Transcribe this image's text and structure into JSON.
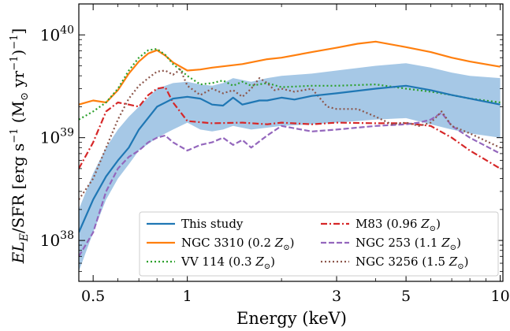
{
  "chart_data": {
    "type": "line",
    "xlabel": "Energy (keV)",
    "ylabel_parts": {
      "main": "EL",
      "sub": "E",
      "rest": "/SFR [erg s",
      "exp1": "−1",
      "mid": " (M",
      "sun": "⊙",
      "mid2": " yr",
      "exp2": "−1",
      "end": ")",
      "exp3": "−1",
      "close": "]"
    },
    "xscale": "log",
    "yscale": "log",
    "xlim": [
      0.45,
      10.2
    ],
    "ylim": [
      4e+37,
      2e+40
    ],
    "xticks": [
      {
        "value": 0.5,
        "label": "0.5"
      },
      {
        "value": 1,
        "label": "1"
      },
      {
        "value": 3,
        "label": "3"
      },
      {
        "value": 5,
        "label": "5"
      },
      {
        "value": 10,
        "label": "10"
      }
    ],
    "yticks": [
      {
        "value": 1e+38,
        "base": "10",
        "exp": "38"
      },
      {
        "value": 1e+39,
        "base": "10",
        "exp": "39"
      },
      {
        "value": 1e+40,
        "base": "10",
        "exp": "40"
      }
    ],
    "band": {
      "color": "#a6c8e6",
      "x": [
        0.45,
        0.5,
        0.55,
        0.6,
        0.65,
        0.7,
        0.8,
        0.9,
        1.0,
        1.1,
        1.2,
        1.3,
        1.4,
        1.6,
        1.8,
        2.0,
        2.5,
        3.0,
        4.0,
        5.0,
        6.0,
        7.0,
        8.0,
        10.0
      ],
      "upper": [
        2e+38,
        4.5e+38,
        8e+38,
        1.2e+39,
        1.6e+39,
        2e+39,
        3e+39,
        3.4e+39,
        3.5e+39,
        3.3e+39,
        3.2e+39,
        3.4e+39,
        3.8e+39,
        3.5e+39,
        3.8e+39,
        4e+39,
        4.2e+39,
        4.5e+39,
        5e+39,
        5.3e+39,
        4.8e+39,
        4.3e+39,
        4e+39,
        3.8e+39
      ],
      "lower": [
        5e+37,
        1.2e+38,
        2.5e+38,
        4e+38,
        5.5e+38,
        7.5e+38,
        1e+39,
        1.2e+39,
        1.4e+39,
        1.2e+39,
        1.15e+39,
        1.2e+39,
        1.3e+39,
        1.2e+39,
        1.25e+39,
        1.3e+39,
        1.35e+39,
        1.4e+39,
        1.5e+39,
        1.55e+39,
        1.35e+39,
        1.2e+39,
        1.1e+39,
        1e+39
      ]
    },
    "series": [
      {
        "name": "This study",
        "color": "#1f77b4",
        "dash": "solid",
        "x": [
          0.45,
          0.5,
          0.55,
          0.6,
          0.65,
          0.7,
          0.8,
          0.9,
          1.0,
          1.1,
          1.2,
          1.3,
          1.4,
          1.5,
          1.6,
          1.7,
          1.8,
          2.0,
          2.2,
          2.5,
          3.0,
          4.0,
          5.0,
          6.0,
          7.0,
          8.0,
          10.0
        ],
        "y": [
          1.2e+38,
          2.5e+38,
          4.2e+38,
          6e+38,
          8e+38,
          1.2e+39,
          2e+39,
          2.4e+39,
          2.5e+39,
          2.4e+39,
          2.1e+39,
          2.05e+39,
          2.45e+39,
          2.1e+39,
          2.2e+39,
          2.3e+39,
          2.3e+39,
          2.45e+39,
          2.35e+39,
          2.55e+39,
          2.7e+39,
          3e+39,
          3.2e+39,
          2.9e+39,
          2.6e+39,
          2.4e+39,
          2.1e+39
        ]
      },
      {
        "name": "NGC 3310",
        "metal": "0.2",
        "color": "#ff7f0e",
        "dash": "solid",
        "x": [
          0.45,
          0.5,
          0.55,
          0.6,
          0.65,
          0.7,
          0.75,
          0.8,
          0.85,
          0.9,
          1.0,
          1.1,
          1.2,
          1.5,
          1.8,
          2.0,
          2.5,
          3.0,
          3.5,
          4.0,
          5.0,
          6.0,
          7.0,
          8.0,
          10.0
        ],
        "y": [
          2.1e+39,
          2.3e+39,
          2.2e+39,
          2.9e+39,
          4.2e+39,
          5.5e+39,
          6.6e+39,
          7.1e+39,
          6.3e+39,
          5.4e+39,
          4.5e+39,
          4.6e+39,
          4.8e+39,
          5.2e+39,
          5.8e+39,
          6e+39,
          6.8e+39,
          7.5e+39,
          8.2e+39,
          8.6e+39,
          7.6e+39,
          6.8e+39,
          6e+39,
          5.5e+39,
          4.9e+39
        ]
      },
      {
        "name": "VV 114",
        "metal": "0.3",
        "color": "#2ca02c",
        "dash": "2,3",
        "x": [
          0.45,
          0.5,
          0.55,
          0.6,
          0.65,
          0.7,
          0.75,
          0.8,
          0.85,
          0.9,
          1.0,
          1.1,
          1.2,
          1.3,
          1.4,
          1.5,
          1.6,
          1.8,
          2.0,
          2.5,
          3.0,
          4.0,
          5.0,
          6.0,
          7.0,
          8.0,
          10.0
        ],
        "y": [
          1.5e+39,
          1.8e+39,
          2.2e+39,
          3e+39,
          4.5e+39,
          6e+39,
          7.1e+39,
          7.3e+39,
          6.4e+39,
          5.2e+39,
          4e+39,
          3.3e+39,
          3.4e+39,
          3.6e+39,
          3.2e+39,
          3.5e+39,
          3.2e+39,
          3.4e+39,
          3.1e+39,
          3.2e+39,
          3.2e+39,
          3.3e+39,
          3e+39,
          2.8e+39,
          2.6e+39,
          2.4e+39,
          2.2e+39
        ]
      },
      {
        "name": "M83",
        "metal": "0.96",
        "color": "#d62728",
        "dash": "8,3,2,3",
        "x": [
          0.45,
          0.5,
          0.55,
          0.6,
          0.65,
          0.7,
          0.75,
          0.8,
          0.85,
          0.9,
          1.0,
          1.2,
          1.5,
          1.8,
          2.0,
          2.5,
          3.0,
          4.0,
          5.0,
          6.0,
          7.0,
          8.0,
          10.0
        ],
        "y": [
          5e+38,
          9e+38,
          1.8e+39,
          2.2e+39,
          2.1e+39,
          2e+39,
          2.6e+39,
          3e+39,
          3.1e+39,
          2.2e+39,
          1.45e+39,
          1.38e+39,
          1.4e+39,
          1.35e+39,
          1.4e+39,
          1.35e+39,
          1.4e+39,
          1.38e+39,
          1.38e+39,
          1.3e+39,
          1e+39,
          7.5e+38,
          5e+38
        ]
      },
      {
        "name": "NGC 253",
        "metal": "1.1",
        "color": "#9467bd",
        "dash": "7,3",
        "x": [
          0.45,
          0.5,
          0.55,
          0.6,
          0.65,
          0.7,
          0.75,
          0.8,
          0.85,
          0.9,
          1.0,
          1.1,
          1.2,
          1.3,
          1.4,
          1.5,
          1.6,
          1.8,
          2.0,
          2.5,
          3.0,
          4.0,
          5.0,
          5.5,
          6.0,
          6.5,
          7.0,
          8.0,
          10.0
        ],
        "y": [
          7e+37,
          1.2e+38,
          3e+38,
          5e+38,
          6.5e+38,
          7.5e+38,
          9e+38,
          1e+39,
          1.05e+39,
          9e+38,
          7.5e+38,
          8.5e+38,
          9e+38,
          1e+39,
          8.5e+38,
          9.5e+38,
          8e+38,
          1.05e+39,
          1.3e+39,
          1.15e+39,
          1.2e+39,
          1.3e+39,
          1.35e+39,
          1.4e+39,
          1.5e+39,
          1.75e+39,
          1.3e+39,
          1e+39,
          7e+38
        ]
      },
      {
        "name": "NGC 3256",
        "metal": "1.5",
        "color": "#8c564b",
        "dash": "2,3",
        "x": [
          0.45,
          0.5,
          0.55,
          0.6,
          0.65,
          0.7,
          0.75,
          0.8,
          0.85,
          0.9,
          0.95,
          1.0,
          1.1,
          1.2,
          1.3,
          1.4,
          1.5,
          1.6,
          1.7,
          1.8,
          1.9,
          2.0,
          2.2,
          2.5,
          2.8,
          3.0,
          3.5,
          4.0,
          4.5,
          5.0,
          5.5,
          6.0,
          6.5,
          7.0,
          8.0,
          10.0
        ],
        "y": [
          2.5e+38,
          4e+38,
          8e+38,
          1.5e+39,
          2.4e+39,
          3.2e+39,
          3.8e+39,
          4.4e+39,
          4.5e+39,
          4.1e+39,
          4.6e+39,
          3.2e+39,
          2.6e+39,
          3e+39,
          2.7e+39,
          2.9e+39,
          2.5e+39,
          3e+39,
          3.8e+39,
          3.4e+39,
          2.9e+39,
          3e+39,
          2.8e+39,
          3e+39,
          2e+39,
          1.9e+39,
          1.9e+39,
          1.6e+39,
          1.35e+39,
          1.4e+39,
          1.3e+39,
          1.4e+39,
          1.8e+39,
          1.3e+39,
          1.1e+39,
          8e+38
        ]
      }
    ],
    "legend": {
      "placement": "lower-right",
      "columns": [
        [
          {
            "label": "This study",
            "series": 0
          },
          {
            "label": "NGC 3310 (0.2 ",
            "metal_sym": "Z",
            "sun": "⊙",
            "close": ")",
            "series": 1
          },
          {
            "label": "VV 114 (0.3 ",
            "metal_sym": "Z",
            "sun": "⊙",
            "close": ")",
            "series": 2
          }
        ],
        [
          {
            "label": "M83 (0.96 ",
            "metal_sym": "Z",
            "sun": "⊙",
            "close": ")",
            "series": 3
          },
          {
            "label": "NGC 253 (1.1 ",
            "metal_sym": "Z",
            "sun": "⊙",
            "close": ")",
            "series": 4
          },
          {
            "label": "NGC 3256 (1.5 ",
            "metal_sym": "Z",
            "sun": "⊙",
            "close": ")",
            "series": 5
          }
        ]
      ]
    }
  }
}
